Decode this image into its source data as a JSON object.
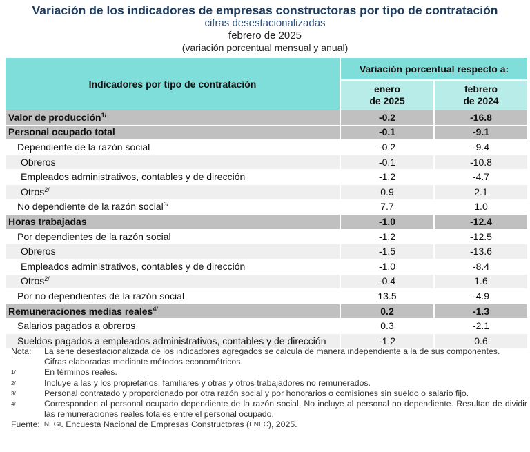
{
  "title": "Variación de los indicadores de empresas constructoras por tipo de contratación",
  "subtitle": "cifras desestacionalizadas",
  "period": "febrero de 2025",
  "unit": "(variación porcentual mensual y anual)",
  "header": {
    "col1": "Indicadores por tipo de contratación",
    "group": "Variación porcentual respecto a:",
    "col2_l1": "enero",
    "col2_l2": "de 2025",
    "col3_l1": "febrero",
    "col3_l2": "de 2024"
  },
  "rows": [
    {
      "label": "Valor de producción",
      "sup": "1/",
      "m": "-0.2",
      "a": "-16.8"
    },
    {
      "label": "Personal ocupado total",
      "sup": "",
      "m": "-0.1",
      "a": "-9.1"
    },
    {
      "label": "Dependiente de la razón social",
      "sup": "",
      "m": "-0.2",
      "a": "-9.4"
    },
    {
      "label": "Obreros",
      "sup": "",
      "m": "-0.1",
      "a": "-10.8"
    },
    {
      "label": "Empleados administrativos, contables y de dirección",
      "sup": "",
      "m": "-1.2",
      "a": "-4.7"
    },
    {
      "label": "Otros",
      "sup": "2/",
      "m": "0.9",
      "a": "2.1"
    },
    {
      "label": "No dependiente de la razón social",
      "sup": "3/",
      "m": "7.7",
      "a": "1.0"
    },
    {
      "label": "Horas trabajadas",
      "sup": "",
      "m": "-1.0",
      "a": "-12.4"
    },
    {
      "label": "Por dependientes de la razón social",
      "sup": "",
      "m": "-1.2",
      "a": "-12.5"
    },
    {
      "label": "Obreros",
      "sup": "",
      "m": "-1.5",
      "a": "-13.6"
    },
    {
      "label": "Empleados administrativos, contables y de dirección",
      "sup": "",
      "m": "-1.0",
      "a": "-8.4"
    },
    {
      "label": "Otros",
      "sup": "2/",
      "m": "-0.4",
      "a": "1.6"
    },
    {
      "label": "Por no dependientes de la razón social",
      "sup": "",
      "m": "13.5",
      "a": "-4.9"
    },
    {
      "label": "Remuneraciones medias reales",
      "sup": "4/",
      "m": "0.2",
      "a": "-1.3"
    },
    {
      "label": "Salarios pagados a obreros",
      "sup": "",
      "m": "0.3",
      "a": "-2.1"
    },
    {
      "label": "Sueldos pagados a empleados administrativos, contables y de dirección",
      "sup": "",
      "m": "-1.2",
      "a": "0.6"
    }
  ],
  "notes": {
    "nota_key": "Nota:",
    "nota1": "La serie desestacionalizada de los indicadores agregados se calcula de manera independiente a la de sus componentes.",
    "nota2": "Cifras elaboradas mediante métodos econométricos.",
    "f1_key": "1/",
    "f1": "En términos reales.",
    "f2_key": "2/",
    "f2": "Incluye a las y los propietarios, familiares y otras y otros trabajadores no remunerados.",
    "f3_key": "3/",
    "f3": "Personal contratado y proporcionado por otra razón social y por honorarios o comisiones sin sueldo o salario fijo.",
    "f4_key": "4/",
    "f4": "Corresponden al personal ocupado dependiente de la razón social. No incluye al personal no dependiente. Resultan de dividir las remuneraciones reales totales entre el personal ocupado.",
    "fuente_key": "Fuente:",
    "fuente_org": "INEGI",
    "fuente_a": ". Encuesta Nacional de Empresas Constructoras (",
    "fuente_abbr": "ENEC",
    "fuente_b": "), 2025."
  }
}
